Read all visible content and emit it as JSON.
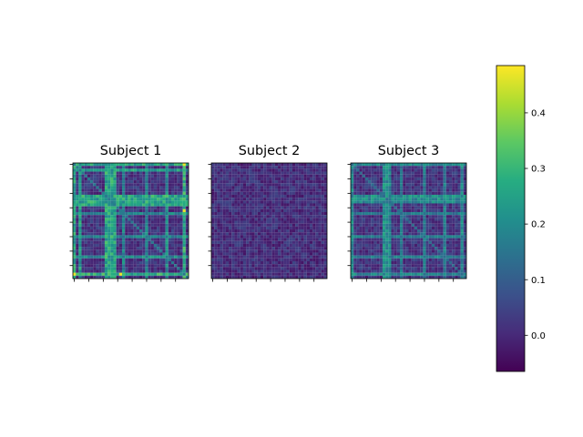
{
  "chart_data": {
    "type": "heatmap",
    "layout": "three side-by-side matrix panels with one shared colorbar on the right",
    "colormap": "viridis",
    "value_range": [
      -0.065,
      0.485
    ],
    "matrix_size": 40,
    "tick_labels_shown": false,
    "panels": [
      {
        "title": "Subject 1",
        "base_level": 0.02,
        "diagonal_value": 0.16,
        "strong_rows_cols": [
          {
            "index": 0,
            "level": 0.33
          },
          {
            "index": 2,
            "level": 0.3
          },
          {
            "index": 11,
            "level": 0.34
          },
          {
            "index": 12,
            "level": 0.32
          },
          {
            "index": 13,
            "level": 0.33
          },
          {
            "index": 14,
            "level": 0.32
          },
          {
            "index": 17,
            "level": 0.25
          },
          {
            "index": 25,
            "level": 0.24
          },
          {
            "index": 32,
            "level": 0.26
          },
          {
            "index": 38,
            "level": 0.35
          }
        ],
        "peak_value": 0.47
      },
      {
        "title": "Subject 2",
        "base_level": 0.01,
        "diagonal_value": 0.04,
        "strong_rows_cols": [],
        "peak_value": 0.07
      },
      {
        "title": "Subject 3",
        "base_level": 0.02,
        "diagonal_value": 0.13,
        "strong_rows_cols": [
          {
            "index": 0,
            "level": 0.25
          },
          {
            "index": 11,
            "level": 0.27
          },
          {
            "index": 12,
            "level": 0.26
          },
          {
            "index": 13,
            "level": 0.25
          },
          {
            "index": 17,
            "level": 0.2
          },
          {
            "index": 25,
            "level": 0.22
          },
          {
            "index": 32,
            "level": 0.21
          },
          {
            "index": 38,
            "level": 0.24
          }
        ],
        "peak_value": 0.3
      }
    ],
    "colorbar": {
      "range": [
        -0.065,
        0.485
      ],
      "ticks": [
        0.0,
        0.1,
        0.2,
        0.3,
        0.4
      ],
      "tick_labels": [
        "0.0",
        "0.1",
        "0.2",
        "0.3",
        "0.4"
      ]
    }
  }
}
